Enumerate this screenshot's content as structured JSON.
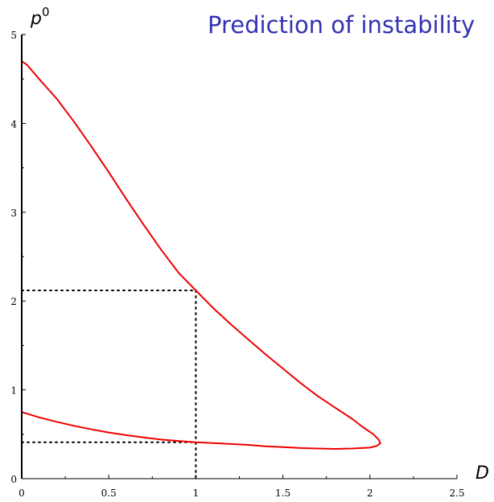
{
  "chart_data": {
    "type": "line",
    "title": "Prediction of instability",
    "xlabel": "D",
    "ylabel_base": "p",
    "ylabel_sup": "0",
    "xlim": [
      0,
      2.5
    ],
    "ylim": [
      0,
      5
    ],
    "xticks": [
      0,
      0.5,
      1,
      1.5,
      2,
      2.5
    ],
    "xtick_labels": [
      "0",
      "0.5",
      "1",
      "1.5",
      "2",
      "2.5"
    ],
    "yticks": [
      0,
      1,
      2,
      3,
      4,
      5
    ],
    "ytick_labels": [
      "0",
      "1",
      "2",
      "3",
      "4",
      "5"
    ],
    "grid": false,
    "series": [
      {
        "color": "#ee0000",
        "points": [
          [
            0.0,
            4.7
          ],
          [
            0.03,
            4.66
          ],
          [
            0.1,
            4.5
          ],
          [
            0.2,
            4.28
          ],
          [
            0.3,
            4.02
          ],
          [
            0.4,
            3.74
          ],
          [
            0.5,
            3.45
          ],
          [
            0.6,
            3.15
          ],
          [
            0.7,
            2.86
          ],
          [
            0.8,
            2.58
          ],
          [
            0.9,
            2.32
          ],
          [
            1.0,
            2.12
          ],
          [
            1.1,
            1.92
          ],
          [
            1.2,
            1.74
          ],
          [
            1.3,
            1.57
          ],
          [
            1.4,
            1.4
          ],
          [
            1.5,
            1.24
          ],
          [
            1.6,
            1.08
          ],
          [
            1.7,
            0.93
          ],
          [
            1.8,
            0.8
          ],
          [
            1.9,
            0.67
          ],
          [
            1.96,
            0.58
          ],
          [
            2.02,
            0.5
          ],
          [
            2.05,
            0.44
          ],
          [
            2.06,
            0.4
          ],
          [
            2.04,
            0.37
          ],
          [
            2.0,
            0.35
          ],
          [
            1.9,
            0.34
          ],
          [
            1.8,
            0.335
          ],
          [
            1.7,
            0.34
          ],
          [
            1.6,
            0.345
          ],
          [
            1.5,
            0.355
          ],
          [
            1.4,
            0.365
          ],
          [
            1.3,
            0.38
          ],
          [
            1.2,
            0.39
          ],
          [
            1.1,
            0.4
          ],
          [
            1.0,
            0.41
          ],
          [
            0.9,
            0.425
          ],
          [
            0.8,
            0.44
          ],
          [
            0.7,
            0.465
          ],
          [
            0.6,
            0.49
          ],
          [
            0.5,
            0.52
          ],
          [
            0.4,
            0.555
          ],
          [
            0.3,
            0.595
          ],
          [
            0.2,
            0.64
          ],
          [
            0.1,
            0.69
          ],
          [
            0.0,
            0.75
          ]
        ]
      }
    ],
    "guides": [
      {
        "from": [
          0,
          2.12
        ],
        "to": [
          1,
          2.12
        ]
      },
      {
        "from": [
          1,
          2.12
        ],
        "to": [
          1,
          0
        ]
      },
      {
        "from": [
          0,
          0.41
        ],
        "to": [
          1,
          0.41
        ]
      }
    ]
  }
}
